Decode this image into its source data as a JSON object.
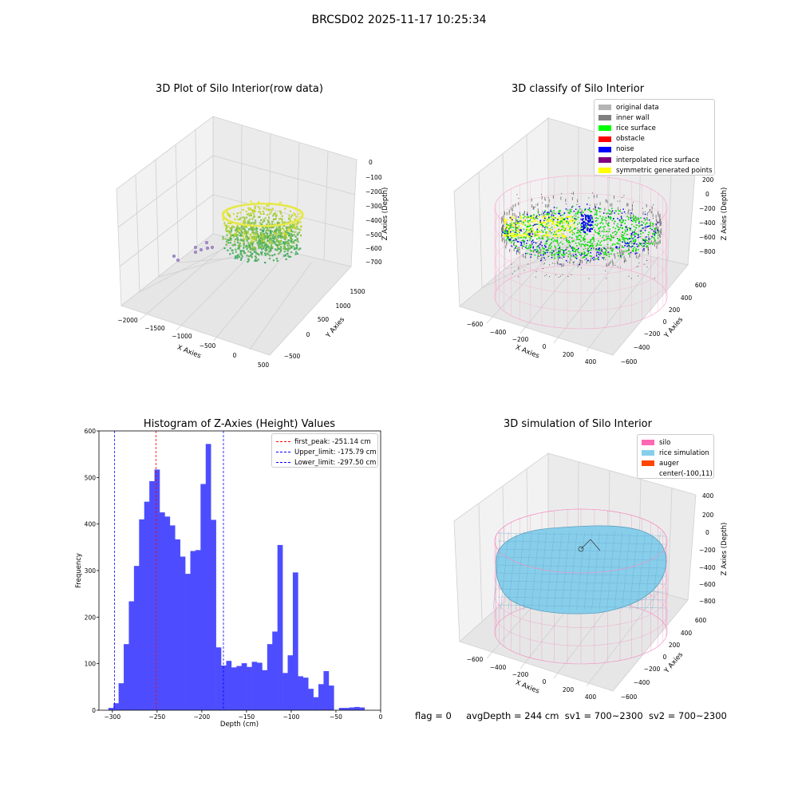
{
  "suptitle": "BRCSD02 2025-11-17 10:25:34",
  "panels": {
    "raw": {
      "title": "3D Plot of Silo Interior(row data)",
      "xlabel": "X Axies",
      "ylabel": "Y Axies",
      "zlabel": "Z Axies (Depth)",
      "xticks": [
        "−2000",
        "−1500",
        "−1000",
        "−500",
        "0",
        "500"
      ],
      "yticks": [
        "−500",
        "0",
        "500",
        "1000",
        "1500"
      ],
      "zticks": [
        "0",
        "−100",
        "−200",
        "−300",
        "−400",
        "−500",
        "−600",
        "−700"
      ]
    },
    "classify": {
      "title": "3D classify of Silo Interior",
      "xlabel": "X Axies",
      "ylabel": "Y Axies",
      "zlabel": "Z Axies (Depth)",
      "xticks": [
        "−600",
        "−400",
        "−200",
        "0",
        "200",
        "400"
      ],
      "yticks": [
        "−600",
        "−400",
        "−200",
        "0",
        "200",
        "400",
        "600"
      ],
      "zticks": [
        "200",
        "0",
        "−200",
        "−400",
        "−600",
        "−800"
      ],
      "legend": [
        {
          "label": "original data",
          "color": "#b4b4b4"
        },
        {
          "label": "inner wall",
          "color": "#808080"
        },
        {
          "label": "rice surface",
          "color": "#00ff00"
        },
        {
          "label": "obstacle",
          "color": "#ff0000"
        },
        {
          "label": "noise",
          "color": "#0000ff"
        },
        {
          "label": "interpolated rice surface",
          "color": "#800080"
        },
        {
          "label": "symmetric generated points",
          "color": "#ffff00"
        }
      ]
    },
    "simulation": {
      "title": "3D simulation of Silo Interior",
      "xlabel": "X Axies",
      "ylabel": "Y Axies",
      "zlabel": "Z Axies (Depth)",
      "xticks": [
        "−600",
        "−400",
        "−200",
        "0",
        "200",
        "400"
      ],
      "yticks": [
        "−600",
        "−400",
        "−200",
        "0",
        "200",
        "400",
        "600"
      ],
      "zticks": [
        "400",
        "200",
        "0",
        "−200",
        "−400",
        "−600",
        "−800"
      ],
      "legend": [
        {
          "label": "silo",
          "color": "#ff69b4"
        },
        {
          "label": "rice simulation",
          "color": "#87ceeb"
        },
        {
          "label": "auger",
          "color": "#ff4500"
        },
        {
          "label": "center(-100,11)",
          "color": ""
        }
      ]
    }
  },
  "chart_data": [
    {
      "type": "bar",
      "title": "Histogram of Z-Axies (Height) Values",
      "xlabel": "Depth (cm)",
      "ylabel": "Frequency",
      "xlim": [
        -315,
        0
      ],
      "ylim": [
        0,
        600
      ],
      "xticks": [
        -300,
        -250,
        -200,
        -150,
        -100,
        -50,
        0
      ],
      "yticks": [
        0,
        100,
        200,
        300,
        400,
        500,
        600
      ],
      "bin_start": -304.5,
      "bin_width": 5.73,
      "values": [
        5,
        15,
        58,
        142,
        234,
        310,
        410,
        448,
        492,
        517,
        425,
        416,
        397,
        367,
        330,
        293,
        342,
        344,
        486,
        572,
        409,
        135,
        96,
        106,
        92,
        95,
        101,
        93,
        104,
        102,
        86,
        142,
        169,
        355,
        80,
        118,
        296,
        73,
        70,
        46,
        28,
        56,
        84,
        53,
        0,
        5,
        5,
        6,
        7,
        6
      ],
      "vlines": [
        {
          "x": -251.14,
          "color": "#ff0000",
          "label": "first_peak: -251.14 cm"
        },
        {
          "x": -175.79,
          "color": "#0000ff",
          "label": "Upper_limit: -175.79 cm"
        },
        {
          "x": -297.5,
          "color": "#0000ff",
          "label": "Lower_limit: -297.50 cm"
        }
      ],
      "legend_position": "upper right",
      "bar_color": "#4d4dff"
    }
  ],
  "footer": {
    "flag": "flag = 0",
    "avg": "avgDepth = 244 cm",
    "sv1": "sv1 = 700~2300",
    "sv2": "sv2 = 700~2300"
  }
}
